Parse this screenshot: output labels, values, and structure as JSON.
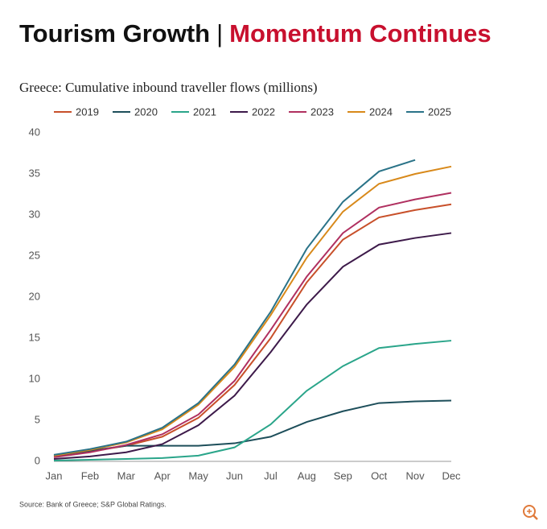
{
  "chart_data": {
    "type": "line",
    "title": "Tourism Growth",
    "title_separator": "|",
    "title_highlight": "Momentum Continues",
    "subtitle": "Greece: Cumulative inbound traveller flows (millions)",
    "source": "Source: Bank of Greece; S&P Global Ratings.",
    "categories": [
      "Jan",
      "Feb",
      "Mar",
      "Apr",
      "May",
      "Jun",
      "Jul",
      "Aug",
      "Sep",
      "Oct",
      "Nov",
      "Dec"
    ],
    "series": [
      {
        "name": "2019",
        "color": "#c8502a",
        "values": [
          0.6,
          1.2,
          1.9,
          3.0,
          5.3,
          9.3,
          15.0,
          21.8,
          27.0,
          29.7,
          30.6,
          31.3
        ]
      },
      {
        "name": "2020",
        "color": "#1d4e5a",
        "values": [
          0.7,
          1.3,
          1.9,
          1.9,
          1.9,
          2.2,
          3.0,
          4.8,
          6.1,
          7.1,
          7.3,
          7.4
        ]
      },
      {
        "name": "2021",
        "color": "#2aa58a",
        "values": [
          0.1,
          0.2,
          0.3,
          0.4,
          0.7,
          1.7,
          4.5,
          8.6,
          11.6,
          13.8,
          14.3,
          14.7
        ]
      },
      {
        "name": "2022",
        "color": "#3d1a4a",
        "values": [
          0.3,
          0.6,
          1.1,
          2.1,
          4.4,
          8.0,
          13.3,
          19.1,
          23.7,
          26.4,
          27.2,
          27.8
        ]
      },
      {
        "name": "2023",
        "color": "#b03060",
        "values": [
          0.5,
          1.1,
          2.0,
          3.3,
          5.7,
          9.8,
          16.0,
          22.5,
          27.8,
          30.9,
          31.9,
          32.7
        ]
      },
      {
        "name": "2024",
        "color": "#d8891a",
        "values": [
          0.7,
          1.4,
          2.3,
          3.9,
          6.9,
          11.5,
          17.8,
          24.8,
          30.4,
          33.8,
          35.0,
          35.9
        ]
      },
      {
        "name": "2025",
        "color": "#2a7388",
        "values": [
          0.8,
          1.5,
          2.4,
          4.1,
          7.1,
          11.8,
          18.2,
          25.9,
          31.6,
          35.3,
          36.7,
          null
        ]
      }
    ],
    "ylim": [
      0,
      40
    ],
    "yticks": [
      0,
      5,
      10,
      15,
      20,
      25,
      30,
      35,
      40
    ],
    "grid": false
  }
}
